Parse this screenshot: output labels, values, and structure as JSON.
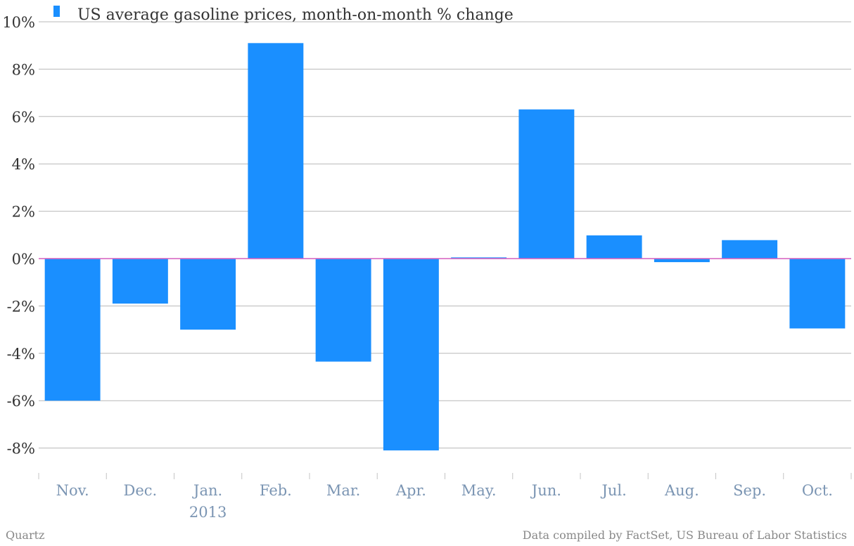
{
  "chart_data": {
    "type": "bar",
    "categories": [
      "Nov.",
      "Dec.",
      "Jan.",
      "Feb.",
      "Mar.",
      "Apr.",
      "May.",
      "Jun.",
      "Jul.",
      "Aug.",
      "Sep.",
      "Oct."
    ],
    "category_sublabels": [
      "",
      "",
      "2013",
      "",
      "",
      "",
      "",
      "",
      "",
      "",
      "",
      ""
    ],
    "series": [
      {
        "name": "US average gasoline prices, month-on-month % change",
        "values": [
          -6.0,
          -1.9,
          -3.0,
          9.1,
          -4.35,
          -8.1,
          0.05,
          6.3,
          0.98,
          -0.15,
          0.78,
          -2.95
        ]
      }
    ],
    "yticks": [
      "10%",
      "8%",
      "6%",
      "4%",
      "2%",
      "0%",
      "-2%",
      "-4%",
      "-6%",
      "-8%"
    ],
    "ytick_values": [
      10,
      8,
      6,
      4,
      2,
      0,
      -2,
      -4,
      -6,
      -8
    ],
    "ylim": [
      -9,
      10
    ],
    "xlabel": "",
    "ylabel": "",
    "grid": true,
    "legend_position": "top-left",
    "colors": {
      "bar": "#1a8fff",
      "zero_line": "#d65fbf",
      "grid": "#b8b8b8",
      "category_text": "#7b95b3"
    }
  },
  "footer": {
    "left": "Quartz",
    "right": "Data compiled by FactSet, US Bureau of Labor Statistics"
  }
}
